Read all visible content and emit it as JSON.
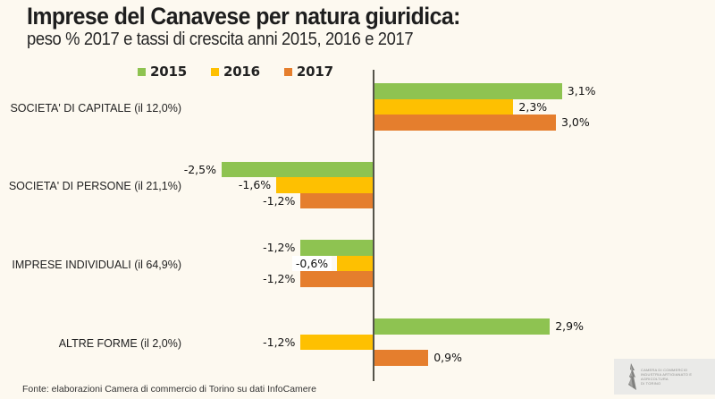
{
  "title": {
    "line1": "Imprese del Canavese per natura giuridica:",
    "line2": "peso % 2017 e tassi di crescita anni 2015, 2016 e 2017"
  },
  "colors": {
    "background": "#FDF9F0",
    "series_2015": "#8EC351",
    "series_2016": "#FEC001",
    "series_2017": "#E57E2D",
    "axis": "#55544A",
    "text": "#1C1C1C"
  },
  "legend": [
    {
      "label": "2015",
      "color": "#8EC351"
    },
    {
      "label": "2016",
      "color": "#FEC001"
    },
    {
      "label": "2017",
      "color": "#E57E2D"
    }
  ],
  "chart_data": {
    "type": "bar",
    "orientation": "horizontal",
    "title": "Imprese del Canavese per natura giuridica: peso % 2017 e tassi di crescita anni 2015, 2016 e 2017",
    "categories": [
      "SOCIETA' DI CAPITALE (il 12,0%)",
      "SOCIETA' DI PERSONE (il 21,1%)",
      "IMPRESE INDIVIDUALI (il 64,9%)",
      "ALTRE FORME (il 2,0%)"
    ],
    "series": [
      {
        "name": "2015",
        "color": "#8EC351",
        "values": [
          3.1,
          -2.5,
          -1.2,
          2.9
        ],
        "labels": [
          "3,1%",
          "-2,5%",
          "-1,2%",
          "2,9%"
        ]
      },
      {
        "name": "2016",
        "color": "#FEC001",
        "values": [
          2.3,
          -1.6,
          -0.6,
          -1.2
        ],
        "labels": [
          "2,3%",
          "-1,6%",
          "-0,6%",
          "-1,2%"
        ],
        "label_bg": [
          null,
          null,
          "#FFFFFF",
          null
        ]
      },
      {
        "name": "2017",
        "color": "#E57E2D",
        "values": [
          3.0,
          -1.2,
          -1.2,
          0.9
        ],
        "labels": [
          "3,0%",
          "-1,2%",
          "-1,2%",
          "0,9%"
        ]
      }
    ],
    "xlim": [
      -3.2,
      4.2
    ],
    "grid": false,
    "legend_position": "top",
    "value_unit": "%"
  },
  "footer": {
    "source": "Fonte: elaborazioni Camera di commercio di Torino su dati InfoCamere"
  },
  "logo": {
    "line1": "CAMERA DI COMMERCIO",
    "line2": "INDUSTRIA ARTIGIANATO E AGRICOLTURA",
    "line3": "DI TORINO"
  }
}
